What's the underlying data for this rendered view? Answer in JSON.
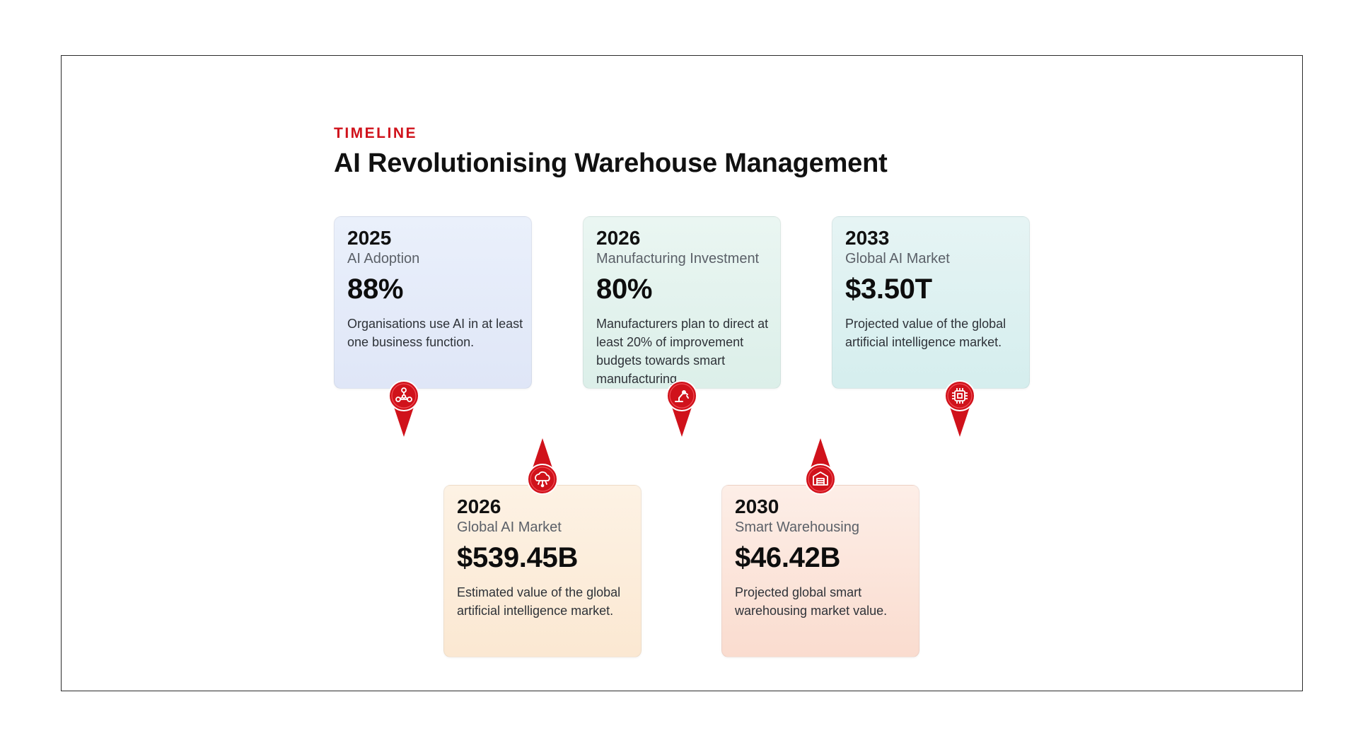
{
  "header": {
    "eyebrow": "TIMELINE",
    "title": "AI Revolutionising Warehouse Management"
  },
  "colors": {
    "accent": "#d0121b",
    "text": "#111111"
  },
  "milestones": [
    {
      "year": "2025",
      "label": "AI Adoption",
      "value": "88%",
      "description": "Organisations use AI in at least one business function.",
      "icon": "network-nodes-icon",
      "row": "top"
    },
    {
      "year": "2026",
      "label": "Manufacturing Investment",
      "value": "80%",
      "description": "Manufacturers plan to direct at least 20% of improvement budgets towards smart manufacturing.",
      "icon": "robot-arm-icon",
      "row": "top"
    },
    {
      "year": "2033",
      "label": "Global AI Market",
      "value": "$3.50T",
      "description": "Projected value of the global artificial intelligence market.",
      "icon": "chip-icon",
      "row": "top"
    },
    {
      "year": "2026",
      "label": "Global AI Market",
      "value": "$539.45B",
      "description": "Estimated value of the global artificial intelligence market.",
      "icon": "cloud-network-icon",
      "row": "bottom"
    },
    {
      "year": "2030",
      "label": "Smart Warehousing",
      "value": "$46.42B",
      "description": "Projected global smart warehousing market value.",
      "icon": "warehouse-icon",
      "row": "bottom"
    }
  ]
}
